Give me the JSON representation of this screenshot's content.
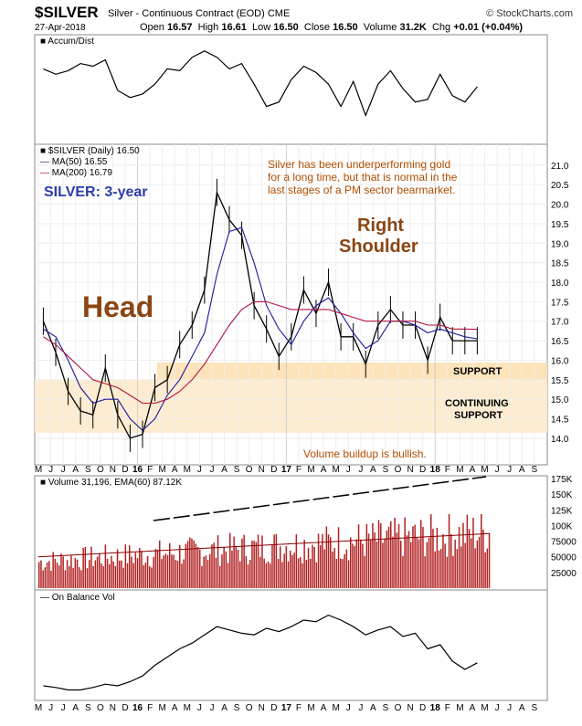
{
  "header": {
    "symbol": "$SILVER",
    "description": "Silver - Continuous Contract (EOD) CME",
    "brand": "© StockCharts.com",
    "date": "27-Apr-2018",
    "open_label": "Open",
    "open": "16.57",
    "high_label": "High",
    "high": "16.61",
    "low_label": "Low",
    "low": "16.50",
    "close_label": "Close",
    "close": "16.50",
    "volume_label": "Volume",
    "volume": "31.2K",
    "chg_label": "Chg",
    "chg": "+0.01 (+0.04%)"
  },
  "panels": {
    "accum_label": "Accum/Dist",
    "price_label": "$SILVER (Daily) 16.50",
    "ma50_label": "MA(50) 16.55",
    "ma200_label": "MA(200) 16.79",
    "volume_label": "Volume 31,196, EMA(60) 87.12K",
    "obv_label": "On Balance Vol"
  },
  "annotations": {
    "title": "SILVER: 3-year",
    "comment_lines": [
      "Silver has been underperforming gold",
      "for a long time, but that is normal in the",
      "last stages of a PM sector bearmarket."
    ],
    "head": "Head",
    "right_shoulder_1": "Right",
    "right_shoulder_2": "Shoulder",
    "support": "SUPPORT",
    "continuing_1": "CONTINUING",
    "continuing_2": "SUPPORT",
    "volume_note": "Volume buildup is bullish."
  },
  "colors": {
    "price_bars": "#000000",
    "ma50": "#1a1aa0",
    "ma200": "#b3123c",
    "volume_bars": "#b22222",
    "support_band": "#fde3b8",
    "annotation_orange": "#b34d00",
    "title_blue": "#2b3ea8"
  },
  "chart_data": [
    {
      "name": "accum_dist",
      "type": "line",
      "x": [
        "2015-05",
        "2015-06",
        "2015-07",
        "2015-08",
        "2015-09",
        "2015-10",
        "2015-11",
        "2015-12",
        "2016-01",
        "2016-02",
        "2016-03",
        "2016-04",
        "2016-05",
        "2016-06",
        "2016-07",
        "2016-08",
        "2016-09",
        "2016-10",
        "2016-11",
        "2016-12",
        "2017-01",
        "2017-02",
        "2017-03",
        "2017-04",
        "2017-05",
        "2017-06",
        "2017-07",
        "2017-08",
        "2017-09",
        "2017-10",
        "2017-11",
        "2017-12",
        "2018-01",
        "2018-02",
        "2018-03",
        "2018-04"
      ],
      "values": [
        0.72,
        0.66,
        0.7,
        0.78,
        0.75,
        0.82,
        0.48,
        0.4,
        0.44,
        0.55,
        0.72,
        0.7,
        0.85,
        0.92,
        0.85,
        0.72,
        0.78,
        0.55,
        0.3,
        0.35,
        0.6,
        0.75,
        0.68,
        0.55,
        0.3,
        0.58,
        0.2,
        0.55,
        0.7,
        0.5,
        0.35,
        0.38,
        0.66,
        0.42,
        0.35,
        0.52
      ]
    },
    {
      "name": "price",
      "type": "line",
      "title": "$SILVER (Daily) 16.50",
      "x": [
        "2015-05",
        "2015-06",
        "2015-07",
        "2015-08",
        "2015-09",
        "2015-10",
        "2015-11",
        "2015-12",
        "2016-01",
        "2016-02",
        "2016-03",
        "2016-04",
        "2016-05",
        "2016-06",
        "2016-07",
        "2016-08",
        "2016-09",
        "2016-10",
        "2016-11",
        "2016-12",
        "2017-01",
        "2017-02",
        "2017-03",
        "2017-04",
        "2017-05",
        "2017-06",
        "2017-07",
        "2017-08",
        "2017-09",
        "2017-10",
        "2017-11",
        "2017-12",
        "2018-01",
        "2018-02",
        "2018-03",
        "2018-04"
      ],
      "series": [
        {
          "name": "$SILVER",
          "values": [
            17.0,
            16.2,
            15.2,
            14.7,
            14.6,
            15.8,
            14.6,
            14.0,
            14.1,
            15.3,
            15.5,
            16.4,
            16.9,
            17.8,
            20.3,
            19.6,
            19.2,
            17.4,
            16.8,
            16.1,
            16.6,
            17.8,
            17.2,
            18.0,
            16.6,
            16.6,
            15.9,
            16.9,
            17.3,
            16.9,
            16.9,
            16.0,
            17.1,
            16.5,
            16.5,
            16.5
          ]
        },
        {
          "name": "MA(50) 16.55",
          "values": [
            16.8,
            16.6,
            16.0,
            15.3,
            14.9,
            15.0,
            15.0,
            14.5,
            14.2,
            14.5,
            15.1,
            15.5,
            16.1,
            16.7,
            18.2,
            19.3,
            19.4,
            18.5,
            17.4,
            16.8,
            16.4,
            17.0,
            17.4,
            17.6,
            17.2,
            16.7,
            16.3,
            16.5,
            17.0,
            17.0,
            16.9,
            16.7,
            16.8,
            16.7,
            16.6,
            16.55
          ]
        },
        {
          "name": "MA(200) 16.79",
          "values": [
            16.6,
            16.4,
            16.1,
            15.8,
            15.5,
            15.4,
            15.3,
            15.1,
            14.9,
            14.9,
            15.0,
            15.2,
            15.5,
            15.9,
            16.4,
            16.9,
            17.3,
            17.5,
            17.5,
            17.4,
            17.3,
            17.3,
            17.3,
            17.3,
            17.2,
            17.1,
            17.0,
            17.0,
            17.0,
            17.0,
            17.0,
            16.9,
            16.9,
            16.8,
            16.8,
            16.79
          ]
        }
      ],
      "ylim": [
        13.6,
        21.3
      ],
      "yticks": [
        14.0,
        14.5,
        15.0,
        15.5,
        16.0,
        16.5,
        17.0,
        17.5,
        18.0,
        18.5,
        19.0,
        19.5,
        20.0,
        20.5,
        21.0
      ]
    },
    {
      "name": "volume",
      "type": "bar",
      "title": "Volume 31,196, EMA(60) 87.12K",
      "ylim": [
        0,
        175000
      ],
      "yticks": [
        25000,
        50000,
        75000,
        100000,
        125000,
        150000,
        175000
      ],
      "ytick_labels": [
        "25000",
        "50000",
        "75000",
        "100K",
        "125K",
        "150K",
        "175K"
      ],
      "ema_level": 87120,
      "trend_line": [
        40000,
        150000
      ]
    },
    {
      "name": "on_balance_volume",
      "type": "line",
      "x": [
        "2015-05",
        "2015-06",
        "2015-07",
        "2015-08",
        "2015-09",
        "2015-10",
        "2015-11",
        "2015-12",
        "2016-01",
        "2016-02",
        "2016-03",
        "2016-04",
        "2016-05",
        "2016-06",
        "2016-07",
        "2016-08",
        "2016-09",
        "2016-10",
        "2016-11",
        "2016-12",
        "2017-01",
        "2017-02",
        "2017-03",
        "2017-04",
        "2017-05",
        "2017-06",
        "2017-07",
        "2017-08",
        "2017-09",
        "2017-10",
        "2017-11",
        "2017-12",
        "2018-01",
        "2018-02",
        "2018-03",
        "2018-04"
      ],
      "values": [
        0.1,
        0.08,
        0.05,
        0.05,
        0.08,
        0.12,
        0.1,
        0.15,
        0.22,
        0.35,
        0.45,
        0.55,
        0.62,
        0.72,
        0.82,
        0.78,
        0.74,
        0.72,
        0.8,
        0.76,
        0.82,
        0.9,
        0.88,
        0.96,
        0.9,
        0.82,
        0.72,
        0.78,
        0.82,
        0.7,
        0.74,
        0.55,
        0.6,
        0.4,
        0.3,
        0.38
      ]
    }
  ],
  "axis": {
    "month_ticks": [
      "M",
      "J",
      "J",
      "A",
      "S",
      "O",
      "N",
      "D",
      "16",
      "F",
      "M",
      "A",
      "M",
      "J",
      "J",
      "A",
      "S",
      "O",
      "N",
      "D",
      "17",
      "F",
      "M",
      "A",
      "M",
      "J",
      "J",
      "A",
      "S",
      "O",
      "N",
      "D",
      "18",
      "F",
      "M",
      "A",
      "M",
      "J",
      "J",
      "A",
      "S"
    ]
  }
}
